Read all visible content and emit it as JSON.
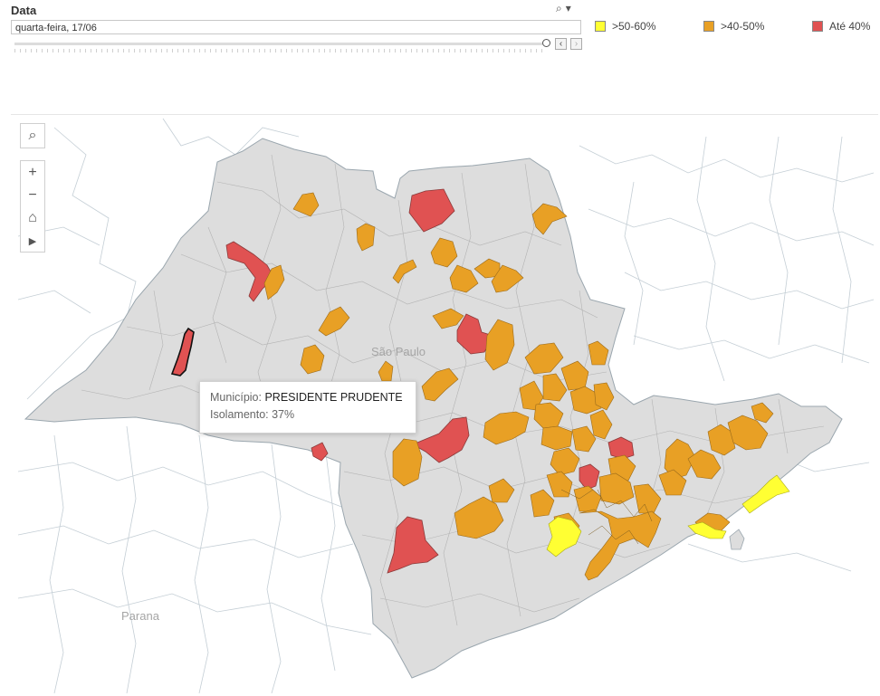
{
  "filter": {
    "title": "Data",
    "search_icon": "magnifier-icon",
    "menu_icon": "dropdown-caret-icon",
    "selected_value": "quarta-feira, 17/06",
    "prev_icon": "chevron-left-icon",
    "next_icon": "chevron-right-icon"
  },
  "legend": {
    "items": [
      {
        "label": ">50-60%",
        "color": "#ffff33"
      },
      {
        "label": ">40-50%",
        "color": "#e8a025"
      },
      {
        "label": "Até 40%",
        "color": "#e05252"
      }
    ]
  },
  "map": {
    "labels": {
      "state_sp": "São Paulo",
      "state_pr": "Parana"
    },
    "colors": {
      "base": "#dddddd",
      "outline": "#9aa6ae",
      "gridline": "#c4ced5"
    },
    "controls": {
      "search": "magnifier-icon",
      "zoom_in": "plus-icon",
      "zoom_out": "minus-icon",
      "home": "home-icon",
      "pan": "play-arrow-icon"
    }
  },
  "tooltip": {
    "municipio_label": "Município:",
    "municipio_value": "PRESIDENTE PRUDENTE",
    "isolamento_label": "Isolamento:",
    "isolamento_value": "37%"
  }
}
